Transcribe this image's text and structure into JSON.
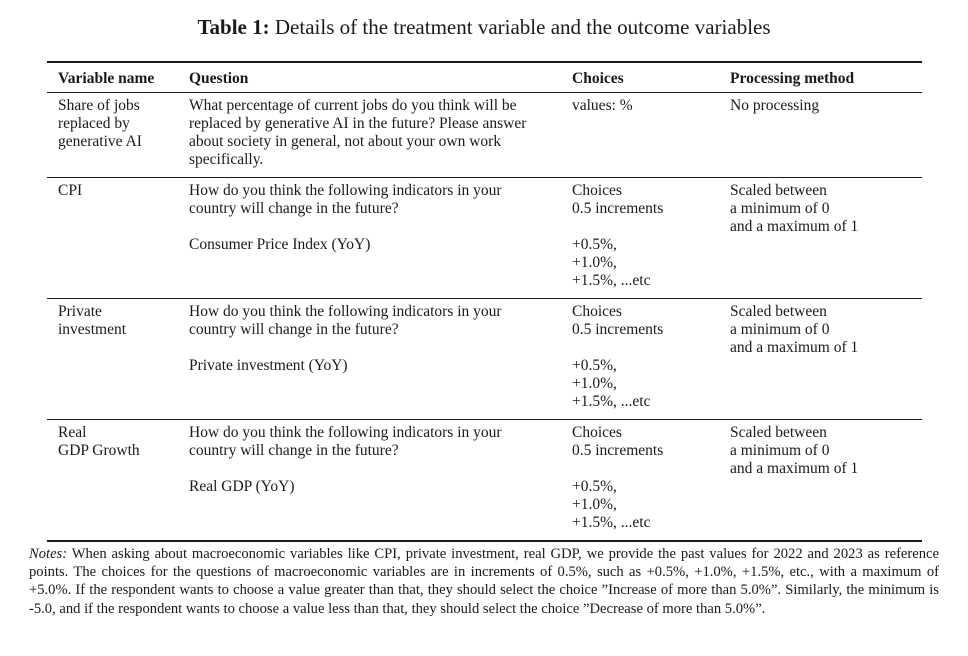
{
  "caption": {
    "label": "Table 1:",
    "title": "Details of the treatment variable and the outcome variables"
  },
  "table": {
    "headers": [
      "Variable name",
      "Question",
      "Choices",
      "Processing method"
    ],
    "rows": [
      {
        "variable_lines": [
          "Share of jobs",
          "replaced by",
          "generative AI"
        ],
        "question_lines": [
          "What percentage of current jobs do you think will be",
          "replaced by generative AI in the future? Please answer",
          "about society in general, not about your own work",
          "specifically."
        ],
        "question_indicator": "",
        "choices_lines": [
          "values: %"
        ],
        "choices_values": [],
        "processing_lines": [
          "No processing"
        ]
      },
      {
        "variable_lines": [
          "CPI"
        ],
        "question_lines": [
          "How do you think the following indicators in your",
          "country will change in the future?"
        ],
        "question_indicator": "Consumer Price Index (YoY)",
        "choices_lines": [
          "Choices",
          "0.5 increments"
        ],
        "choices_values": [
          "+0.5%,",
          "+1.0%,",
          "+1.5%, ...etc"
        ],
        "processing_lines": [
          "Scaled between",
          "a minimum of 0",
          "and a maximum of 1"
        ]
      },
      {
        "variable_lines": [
          "Private",
          "investment"
        ],
        "question_lines": [
          "How do you think the following indicators in your",
          "country will change in the future?"
        ],
        "question_indicator": "Private investment (YoY)",
        "choices_lines": [
          "Choices",
          "0.5 increments"
        ],
        "choices_values": [
          "+0.5%,",
          "+1.0%,",
          "+1.5%, ...etc"
        ],
        "processing_lines": [
          "Scaled between",
          "a minimum of 0",
          "and a maximum of 1"
        ]
      },
      {
        "variable_lines": [
          "Real",
          "GDP Growth"
        ],
        "question_lines": [
          "How do you think the following indicators in your",
          "country will change in the future?"
        ],
        "question_indicator": "Real GDP (YoY)",
        "choices_lines": [
          "Choices",
          "0.5 increments"
        ],
        "choices_values": [
          "+0.5%,",
          "+1.0%,",
          "+1.5%, ...etc"
        ],
        "processing_lines": [
          "Scaled between",
          "a minimum of 0",
          "and a maximum of 1"
        ]
      }
    ]
  },
  "notes": {
    "label": "Notes:",
    "text": "When asking about macroeconomic variables like CPI, private investment, real GDP, we provide the past values for 2022 and 2023 as reference points. The choices for the questions of macroeconomic variables are in increments of 0.5%, such as +0.5%, +1.0%, +1.5%, etc., with a maximum of +5.0%. If the respondent wants to choose a value greater than that, they should select the choice ”Increase of more than 5.0%”. Similarly, the minimum is -5.0, and if the respondent wants to choose a value less than that, they should select the choice ”Decrease of more than 5.0%”."
  }
}
